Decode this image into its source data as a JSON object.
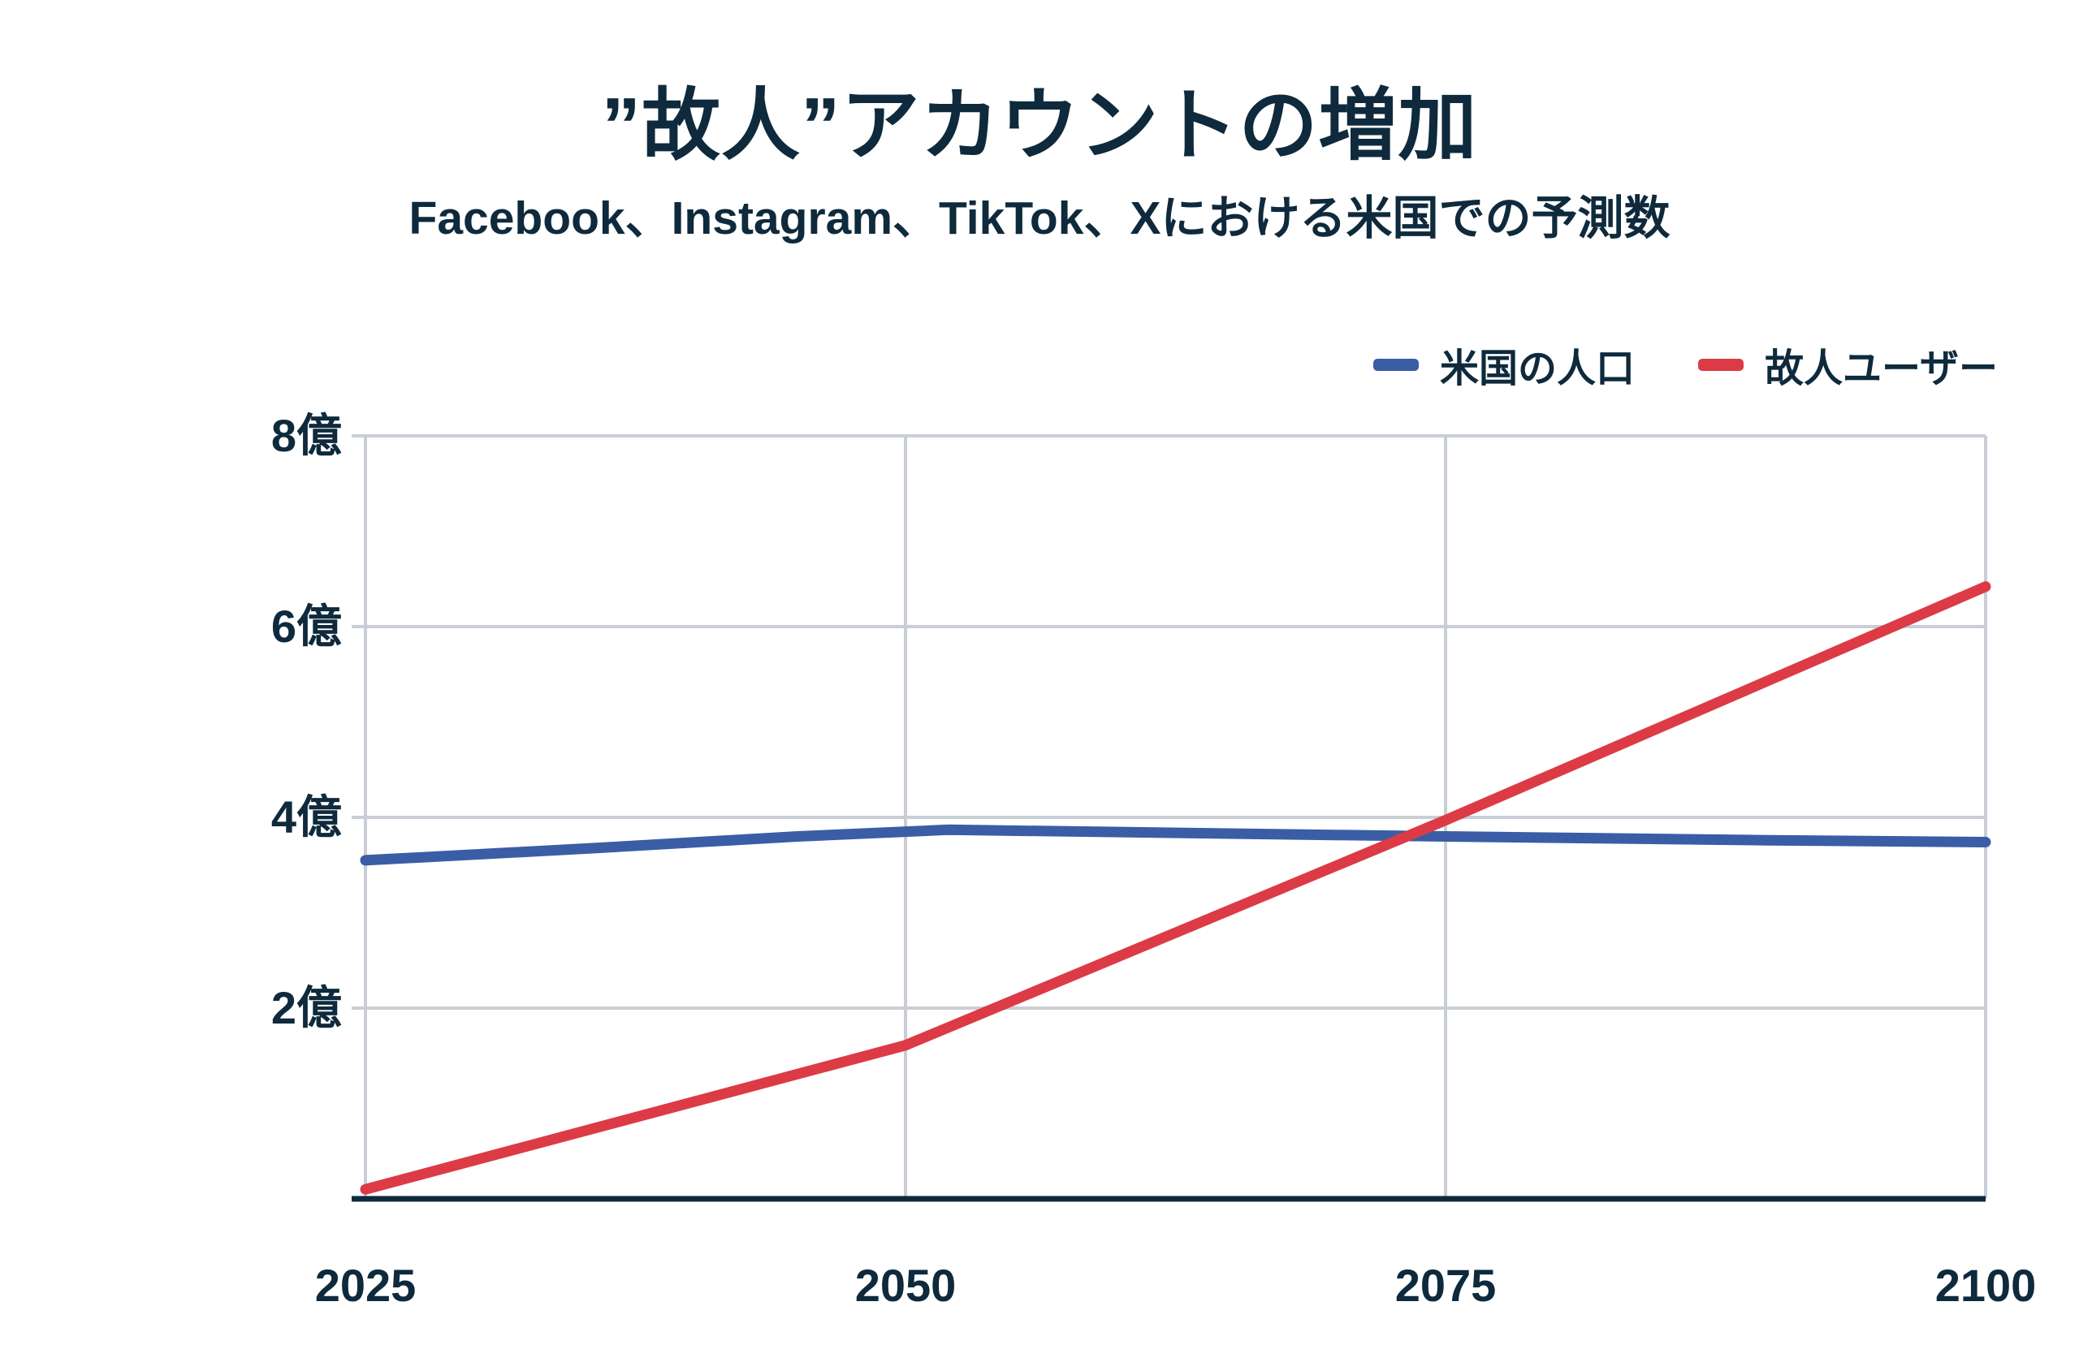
{
  "chart_data": {
    "type": "line",
    "title": "”故人”アカウントの増加",
    "subtitle": "Facebook、Instagram、TikTok、Xにおける米国での予測数",
    "x_tick_labels": [
      "2025",
      "2050",
      "2075",
      "2100"
    ],
    "y_tick_labels": [
      "8億",
      "6億",
      "4億",
      "2億"
    ],
    "xlim": [
      2025,
      2100
    ],
    "ylim": [
      0,
      8
    ],
    "grid": true,
    "legend_position": "top-right",
    "series": [
      {
        "name": "米国の人口",
        "color": "#3a5da5",
        "points": [
          [
            2025,
            3.55
          ],
          [
            2035,
            3.67
          ],
          [
            2045,
            3.8
          ],
          [
            2052,
            3.87
          ],
          [
            2065,
            3.83
          ],
          [
            2075,
            3.8
          ],
          [
            2090,
            3.76
          ],
          [
            2100,
            3.74
          ]
        ]
      },
      {
        "name": "故人ユーザー",
        "color": "#dc3b46",
        "points": [
          [
            2025,
            0.1
          ],
          [
            2050,
            1.61
          ],
          [
            2075,
            3.97
          ],
          [
            2100,
            6.42
          ]
        ]
      }
    ],
    "colors": {
      "text": "#0e2a3c",
      "grid": "#c9ced6",
      "axis": "#0e2a3c",
      "background": "#ffffff"
    }
  }
}
